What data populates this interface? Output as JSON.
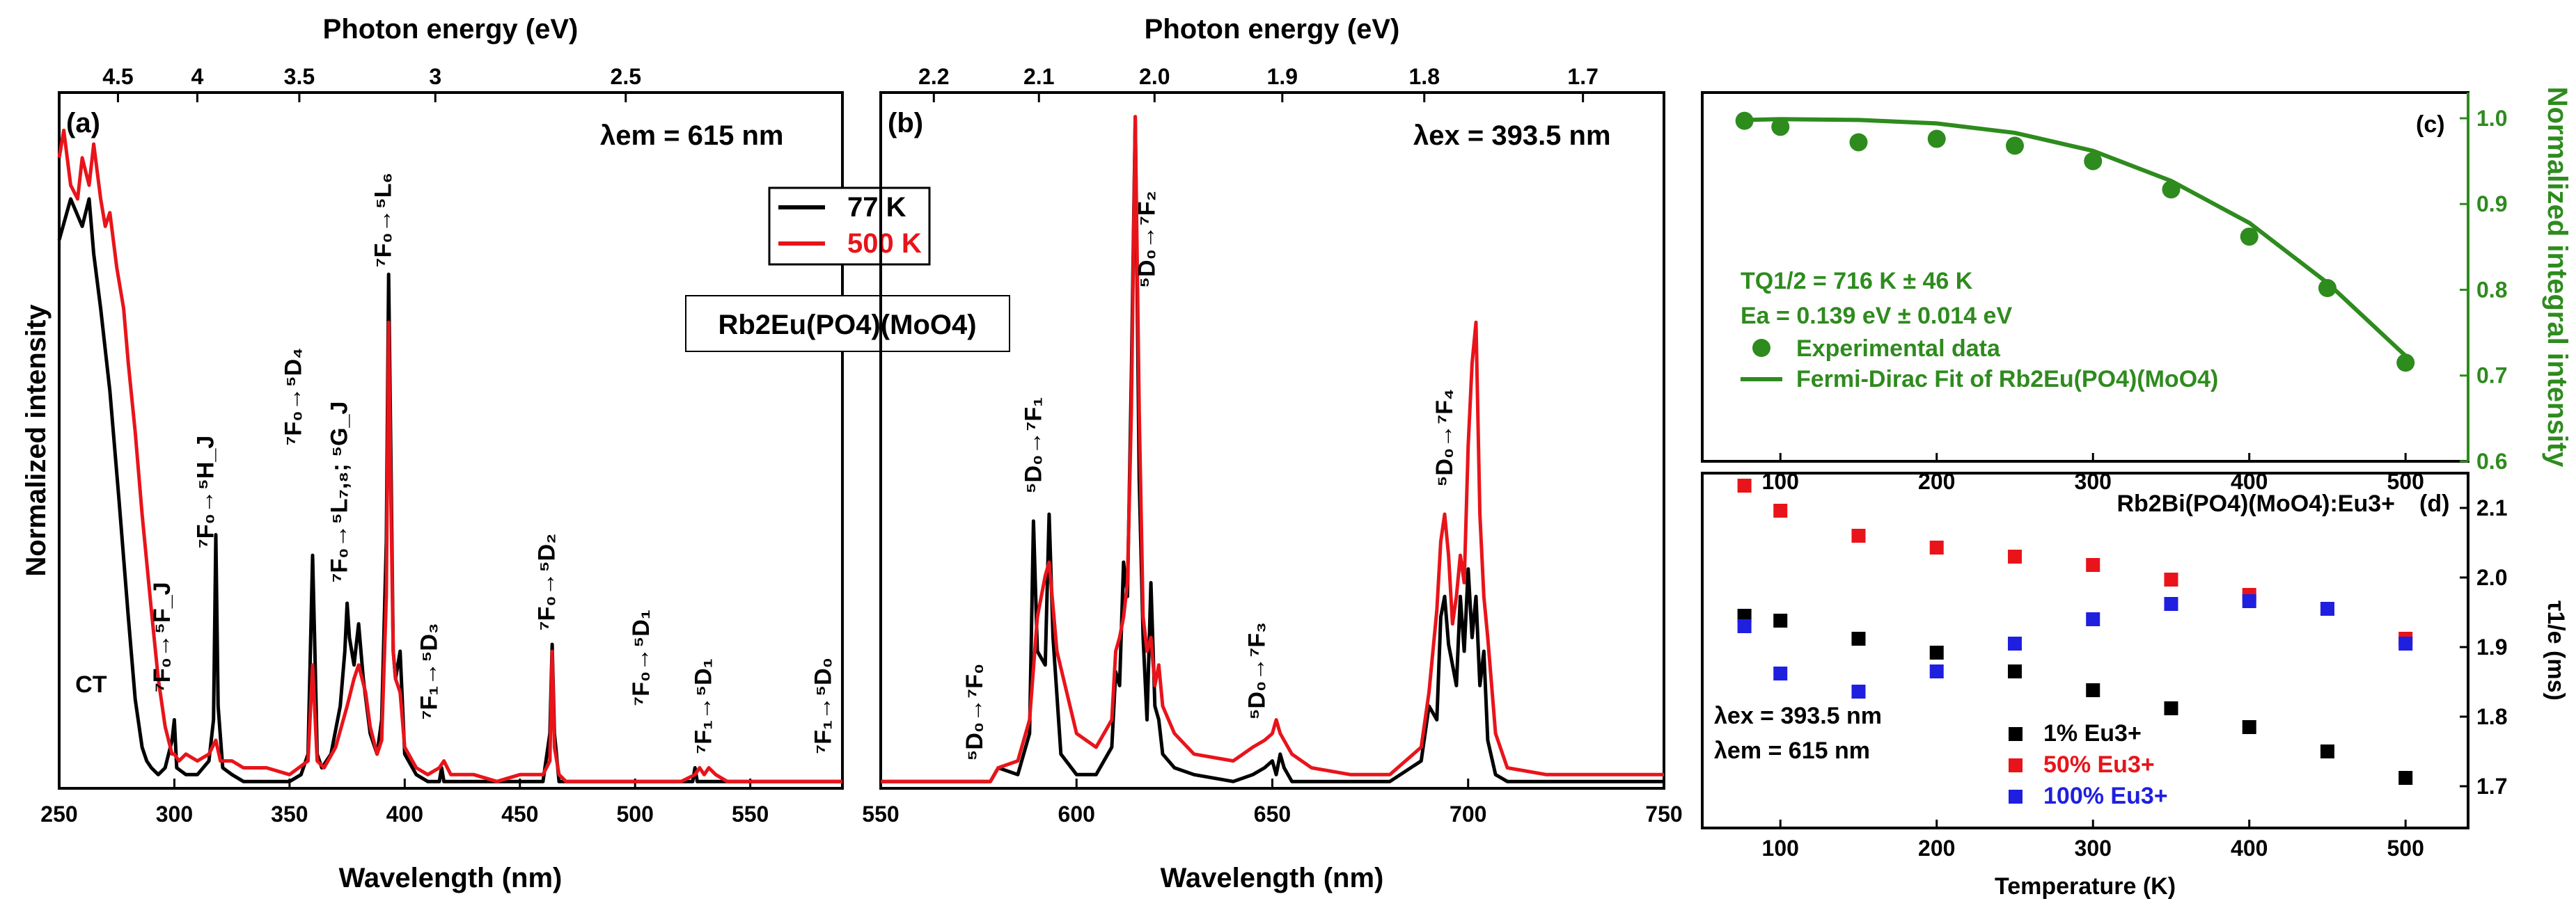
{
  "chart_data": [
    {
      "id": "a",
      "type": "line",
      "panel_label": "(a)",
      "xlabel": "Wavelength (nm)",
      "ylabel": "Normalized intensity",
      "top_axis_label": "Photon energy (eV)",
      "top_ticks": [
        "4.5",
        "4",
        "3.5",
        "3",
        "2.5"
      ],
      "top_ticks_ev": [
        4.5,
        4,
        3.5,
        3,
        2.5
      ],
      "xlim": [
        250,
        590
      ],
      "x_ticks": [
        250,
        300,
        350,
        400,
        450,
        500,
        550
      ],
      "condition": "λem = 615 nm",
      "legend": [
        "77 K",
        "500 K"
      ],
      "compound": "Rb2Eu(PO4)(MoO4)",
      "series": [
        {
          "name": "77 K",
          "color": "#000000",
          "x": [
            250,
            255,
            260,
            263,
            265,
            268,
            272,
            276,
            280,
            283,
            286,
            288,
            290,
            293,
            296,
            299,
            300,
            301,
            305,
            310,
            315,
            317,
            318,
            319,
            321,
            325,
            330,
            340,
            350,
            355,
            358,
            360,
            361,
            362,
            364,
            368,
            372,
            374,
            375,
            376,
            378,
            380,
            382,
            385,
            388,
            390,
            392,
            393,
            394,
            395,
            396,
            398,
            400,
            405,
            410,
            415,
            416,
            417,
            420,
            430,
            440,
            450,
            460,
            463,
            464,
            465,
            467,
            470,
            480,
            490,
            500,
            510,
            520,
            525,
            526,
            527,
            530,
            535,
            540,
            550,
            560,
            570,
            580,
            585,
            590
          ],
          "y": [
            0.8,
            0.86,
            0.82,
            0.86,
            0.78,
            0.7,
            0.58,
            0.42,
            0.25,
            0.13,
            0.06,
            0.04,
            0.03,
            0.02,
            0.03,
            0.07,
            0.1,
            0.03,
            0.02,
            0.02,
            0.04,
            0.1,
            0.37,
            0.12,
            0.03,
            0.02,
            0.01,
            0.01,
            0.01,
            0.02,
            0.05,
            0.34,
            0.2,
            0.05,
            0.03,
            0.05,
            0.12,
            0.2,
            0.27,
            0.22,
            0.18,
            0.24,
            0.16,
            0.08,
            0.05,
            0.1,
            0.36,
            0.75,
            0.48,
            0.2,
            0.16,
            0.2,
            0.05,
            0.02,
            0.01,
            0.01,
            0.03,
            0.01,
            0.01,
            0.01,
            0.01,
            0.01,
            0.01,
            0.08,
            0.21,
            0.08,
            0.01,
            0.01,
            0.01,
            0.01,
            0.01,
            0.01,
            0.01,
            0.01,
            0.03,
            0.01,
            0.01,
            0.01,
            0.01,
            0.01,
            0.01,
            0.01,
            0.01,
            0.01,
            0.01
          ]
        },
        {
          "name": "500 K",
          "color": "#e8141a",
          "x": [
            250,
            252,
            255,
            258,
            260,
            263,
            265,
            268,
            270,
            272,
            275,
            278,
            280,
            283,
            286,
            290,
            293,
            296,
            299,
            300,
            302,
            305,
            310,
            315,
            318,
            320,
            325,
            330,
            340,
            350,
            358,
            360,
            362,
            365,
            370,
            375,
            378,
            380,
            383,
            385,
            388,
            390,
            392,
            393,
            394,
            395,
            396,
            398,
            400,
            405,
            410,
            415,
            417,
            420,
            430,
            440,
            450,
            460,
            463,
            464,
            465,
            467,
            470,
            480,
            500,
            520,
            526,
            528,
            530,
            532,
            535,
            540,
            550,
            560,
            570,
            580,
            590
          ],
          "y": [
            0.92,
            0.96,
            0.88,
            0.86,
            0.92,
            0.88,
            0.94,
            0.86,
            0.82,
            0.84,
            0.76,
            0.7,
            0.62,
            0.52,
            0.4,
            0.26,
            0.16,
            0.09,
            0.05,
            0.05,
            0.04,
            0.05,
            0.04,
            0.05,
            0.07,
            0.04,
            0.04,
            0.03,
            0.03,
            0.02,
            0.04,
            0.18,
            0.04,
            0.03,
            0.06,
            0.12,
            0.16,
            0.18,
            0.14,
            0.09,
            0.05,
            0.07,
            0.28,
            0.68,
            0.42,
            0.2,
            0.16,
            0.14,
            0.06,
            0.03,
            0.02,
            0.03,
            0.04,
            0.02,
            0.02,
            0.01,
            0.02,
            0.02,
            0.04,
            0.2,
            0.06,
            0.02,
            0.01,
            0.01,
            0.01,
            0.01,
            0.02,
            0.03,
            0.02,
            0.03,
            0.02,
            0.01,
            0.01,
            0.01,
            0.01,
            0.01,
            0.01
          ]
        }
      ],
      "annotations": [
        {
          "text": "CT",
          "x": 257,
          "y": 0.14
        },
        {
          "text": "⁷F₀→⁵F_J",
          "x": 298,
          "y": 0.14
        },
        {
          "text": "⁷F₀→⁵H_J",
          "x": 317,
          "y": 0.35
        },
        {
          "text": "⁷F₀→⁵D₄",
          "x": 355,
          "y": 0.5
        },
        {
          "text": "⁷F₀→⁵L₇,₈; ⁵G_J",
          "x": 375,
          "y": 0.3
        },
        {
          "text": "⁷F₀→⁵L₆",
          "x": 394,
          "y": 0.76
        },
        {
          "text": "⁷F₁→⁵D₃",
          "x": 414,
          "y": 0.1
        },
        {
          "text": "⁷F₀→⁵D₂",
          "x": 465,
          "y": 0.23
        },
        {
          "text": "⁷F₀→⁵D₁",
          "x": 506,
          "y": 0.12
        },
        {
          "text": "⁷F₁→⁵D₁",
          "x": 533,
          "y": 0.05
        },
        {
          "text": "⁷F₁→⁵D₀",
          "x": 585,
          "y": 0.05
        }
      ]
    },
    {
      "id": "b",
      "type": "line",
      "panel_label": "(b)",
      "xlabel": "Wavelength (nm)",
      "top_axis_label": "Photon energy (eV)",
      "top_ticks": [
        "2.2",
        "2.1",
        "2.0",
        "1.9",
        "1.8",
        "1.7"
      ],
      "top_ticks_ev": [
        2.2,
        2.1,
        2.0,
        1.9,
        1.8,
        1.7
      ],
      "xlim": [
        550,
        750
      ],
      "x_ticks": [
        550,
        600,
        650,
        700,
        750
      ],
      "condition": "λex = 393.5 nm",
      "series": [
        {
          "name": "77 K",
          "color": "#000000",
          "x": [
            550,
            570,
            578,
            580,
            585,
            588,
            589,
            590,
            592,
            593,
            594,
            596,
            600,
            605,
            609,
            610,
            611,
            612,
            613,
            614,
            615,
            616,
            617,
            618,
            619,
            620,
            621,
            622,
            625,
            630,
            640,
            645,
            648,
            650,
            651,
            652,
            653,
            655,
            660,
            670,
            680,
            688,
            690,
            692,
            693,
            694,
            695,
            696,
            697,
            698,
            699,
            700,
            701,
            702,
            703,
            704,
            705,
            707,
            710,
            720,
            730,
            740,
            750
          ],
          "y": [
            0.01,
            0.01,
            0.01,
            0.03,
            0.02,
            0.08,
            0.39,
            0.2,
            0.18,
            0.4,
            0.22,
            0.05,
            0.02,
            0.02,
            0.06,
            0.17,
            0.15,
            0.33,
            0.28,
            0.6,
            0.98,
            0.45,
            0.22,
            0.1,
            0.3,
            0.12,
            0.1,
            0.05,
            0.03,
            0.02,
            0.01,
            0.02,
            0.03,
            0.04,
            0.02,
            0.05,
            0.03,
            0.01,
            0.01,
            0.01,
            0.01,
            0.04,
            0.12,
            0.1,
            0.25,
            0.28,
            0.21,
            0.18,
            0.15,
            0.28,
            0.2,
            0.32,
            0.22,
            0.28,
            0.15,
            0.2,
            0.07,
            0.02,
            0.01,
            0.01,
            0.01,
            0.01,
            0.01
          ]
        },
        {
          "name": "500 K",
          "color": "#e8141a",
          "x": [
            550,
            570,
            578,
            580,
            585,
            588,
            590,
            592,
            593,
            595,
            600,
            605,
            609,
            610,
            611,
            612,
            613,
            614,
            615,
            616,
            617,
            618,
            619,
            620,
            621,
            622,
            625,
            630,
            640,
            645,
            648,
            650,
            651,
            652,
            655,
            660,
            670,
            680,
            688,
            690,
            692,
            693,
            694,
            695,
            696,
            697,
            698,
            699,
            700,
            701,
            702,
            703,
            704,
            705,
            707,
            710,
            720,
            730,
            740,
            750
          ],
          "y": [
            0.01,
            0.01,
            0.01,
            0.03,
            0.04,
            0.1,
            0.25,
            0.31,
            0.33,
            0.2,
            0.08,
            0.06,
            0.1,
            0.2,
            0.22,
            0.25,
            0.3,
            0.55,
            0.98,
            0.55,
            0.25,
            0.2,
            0.22,
            0.15,
            0.18,
            0.12,
            0.08,
            0.05,
            0.04,
            0.06,
            0.07,
            0.08,
            0.1,
            0.08,
            0.05,
            0.03,
            0.02,
            0.02,
            0.06,
            0.14,
            0.26,
            0.36,
            0.4,
            0.34,
            0.24,
            0.28,
            0.34,
            0.3,
            0.5,
            0.62,
            0.68,
            0.4,
            0.28,
            0.22,
            0.08,
            0.03,
            0.02,
            0.02,
            0.02,
            0.02
          ]
        }
      ],
      "annotations": [
        {
          "text": "⁵D₀→⁷F₀",
          "x": 576,
          "y": 0.04
        },
        {
          "text": "⁵D₀→⁷F₁",
          "x": 591,
          "y": 0.43
        },
        {
          "text": "⁵D₀→⁷F₂",
          "x": 620,
          "y": 0.73
        },
        {
          "text": "⁵D₀→⁷F₃",
          "x": 648,
          "y": 0.1
        },
        {
          "text": "⁵D₀→⁷F₄",
          "x": 696,
          "y": 0.44
        }
      ]
    },
    {
      "id": "c",
      "type": "scatter",
      "panel_label": "(c)",
      "xlim": [
        50,
        540
      ],
      "x_ticks": [
        100,
        200,
        300,
        400,
        500
      ],
      "ylim": [
        0.6,
        1.03
      ],
      "y_ticks": [
        "0.6",
        "0.7",
        "0.8",
        "0.9",
        "1.0"
      ],
      "y_tick_values": [
        0.6,
        0.7,
        0.8,
        0.9,
        1.0
      ],
      "ylabel": "Normalized integral intensity",
      "fit_text_1": "TQ1/2 = 716 K ± 46 K",
      "fit_text_2": "Ea = 0.139 eV ± 0.014 eV",
      "legend": [
        "Experimental data",
        "Fermi-Dirac Fit of Rb2Eu(PO4)(MoO4)"
      ],
      "color": "#2e8b1e",
      "points": {
        "x": [
          77,
          100,
          150,
          200,
          250,
          300,
          350,
          400,
          450,
          500
        ],
        "y": [
          0.997,
          0.99,
          0.972,
          0.976,
          0.968,
          0.95,
          0.917,
          0.862,
          0.802,
          0.715
        ]
      },
      "fit": {
        "x": [
          77,
          100,
          150,
          200,
          250,
          300,
          350,
          400,
          450,
          500
        ],
        "y": [
          0.998,
          0.999,
          0.998,
          0.994,
          0.983,
          0.962,
          0.927,
          0.878,
          0.808,
          0.723
        ]
      }
    },
    {
      "id": "d",
      "type": "scatter",
      "panel_label": "(d)",
      "title": "Rb2Bi(PO4)(MoO4):Eu3+",
      "xlabel": "Temperature (K)",
      "ylabel": "τ1/e (ms)",
      "xlim": [
        50,
        540
      ],
      "x_ticks": [
        100,
        200,
        300,
        400,
        500
      ],
      "ylim": [
        1.64,
        2.15
      ],
      "y_ticks": [
        "1.7",
        "1.8",
        "1.9",
        "2.0",
        "2.1"
      ],
      "y_tick_values": [
        1.7,
        1.8,
        1.9,
        2.0,
        2.1
      ],
      "condition_1": "λex = 393.5 nm",
      "condition_2": "λem = 615 nm",
      "series": [
        {
          "name": "1% Eu3+",
          "color": "#000000",
          "x": [
            77,
            100,
            150,
            200,
            250,
            300,
            350,
            400,
            450,
            500
          ],
          "y": [
            1.945,
            1.938,
            1.912,
            1.892,
            1.865,
            1.838,
            1.812,
            1.785,
            1.75,
            1.712
          ]
        },
        {
          "name": "50% Eu3+",
          "color": "#e8141a",
          "x": [
            77,
            100,
            150,
            200,
            250,
            300,
            350,
            400,
            450,
            500
          ],
          "y": [
            2.132,
            2.096,
            2.06,
            2.043,
            2.03,
            2.018,
            1.997,
            1.975,
            1.955,
            1.912
          ]
        },
        {
          "name": "100% Eu3+",
          "color": "#1f1fe0",
          "x": [
            77,
            100,
            150,
            200,
            250,
            300,
            350,
            400,
            450,
            500
          ],
          "y": [
            1.93,
            1.862,
            1.836,
            1.865,
            1.905,
            1.94,
            1.962,
            1.966,
            1.955,
            1.905
          ]
        }
      ]
    }
  ]
}
